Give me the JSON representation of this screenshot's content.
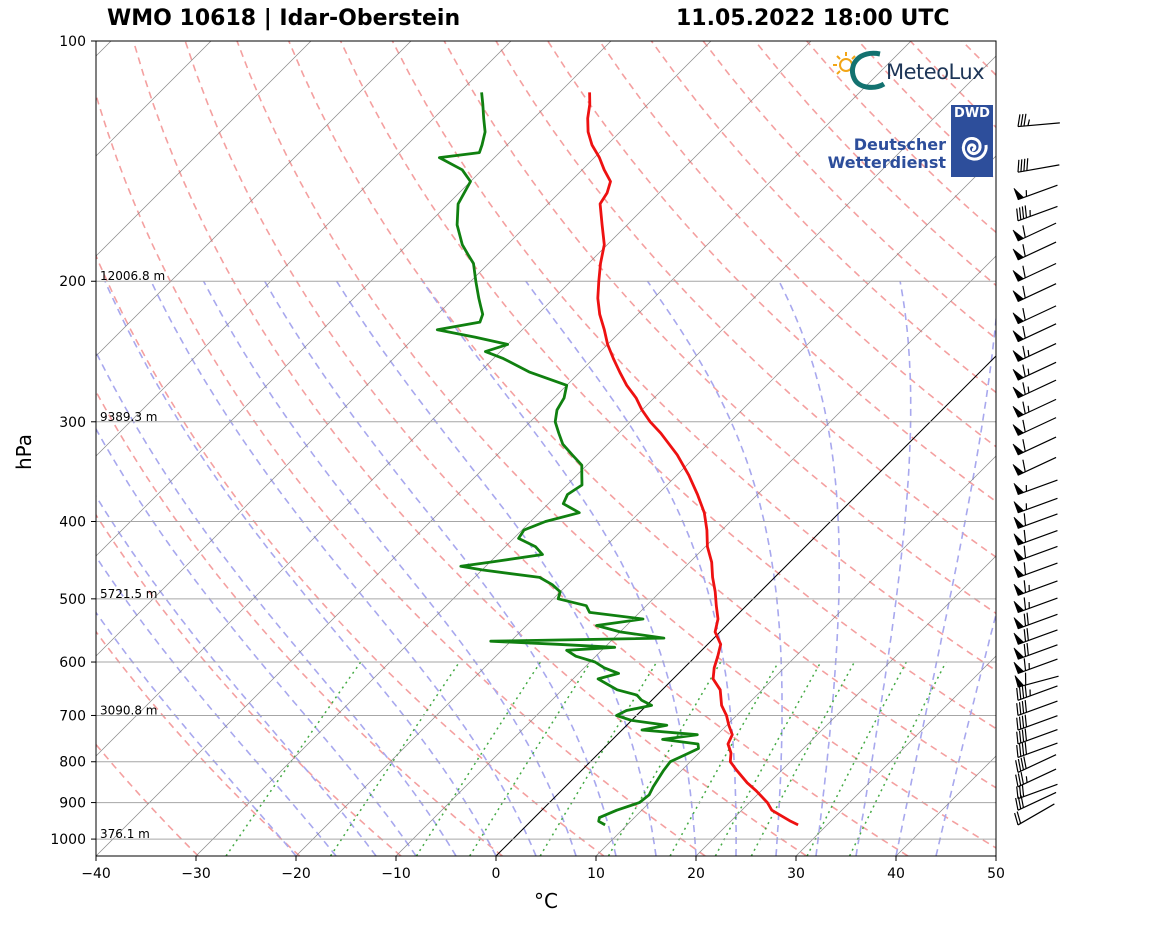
{
  "title_left": "WMO 10618 | Idar-Oberstein",
  "title_right": "11.05.2022 18:00 UTC",
  "logos": {
    "meteolux": "MeteoLux",
    "dwd_box": "DWD",
    "dwd_line1": "Deutscher",
    "dwd_line2": "Wetterdienst"
  },
  "chart_data": {
    "type": "line",
    "diagram": "Skew-T log-P",
    "xlabel": "°C",
    "ylabel": "hPa",
    "xlim": [
      -40,
      50
    ],
    "ylim": [
      1050,
      100
    ],
    "yscale": "log",
    "skew": 45,
    "xticks": [
      -40,
      -30,
      -20,
      -10,
      0,
      10,
      20,
      30,
      40,
      50
    ],
    "xtick_labels": [
      "−40",
      "−30",
      "−20",
      "−10",
      "0",
      "10",
      "20",
      "30",
      "40",
      "50"
    ],
    "yticks": [
      100,
      200,
      300,
      400,
      500,
      600,
      700,
      800,
      900,
      1000
    ],
    "grid": true,
    "height_labels": [
      {
        "p": 200,
        "text": "12006.8 m"
      },
      {
        "p": 300,
        "text": "9389.3 m"
      },
      {
        "p": 500,
        "text": "5721.5 m"
      },
      {
        "p": 700,
        "text": "3090.8 m"
      },
      {
        "p": 1000,
        "text": "376.1 m"
      }
    ],
    "colors": {
      "temperature": "#ee1111",
      "dewpoint": "#108010",
      "dry_adiabats": "#f4a0a0",
      "moist_adiabats": "#a8a8ee",
      "mixing_ratio": "#44aa44",
      "isotherms": "#888888"
    },
    "series": [
      {
        "name": "Temperature",
        "values": [
          [
            960,
            27.1
          ],
          [
            950,
            26.0
          ],
          [
            920,
            23.0
          ],
          [
            900,
            21.8
          ],
          [
            870,
            19.5
          ],
          [
            850,
            17.8
          ],
          [
            820,
            15.5
          ],
          [
            800,
            14.0
          ],
          [
            780,
            13.2
          ],
          [
            760,
            12.0
          ],
          [
            740,
            11.5
          ],
          [
            720,
            10.2
          ],
          [
            700,
            9.0
          ],
          [
            680,
            7.5
          ],
          [
            650,
            5.8
          ],
          [
            630,
            4.0
          ],
          [
            610,
            3.0
          ],
          [
            590,
            2.2
          ],
          [
            570,
            1.3
          ],
          [
            550,
            -0.5
          ],
          [
            530,
            -1.5
          ],
          [
            510,
            -3.0
          ],
          [
            490,
            -4.5
          ],
          [
            470,
            -6.2
          ],
          [
            450,
            -7.8
          ],
          [
            430,
            -9.8
          ],
          [
            410,
            -11.5
          ],
          [
            390,
            -13.5
          ],
          [
            370,
            -16.0
          ],
          [
            350,
            -18.8
          ],
          [
            330,
            -22.0
          ],
          [
            310,
            -25.8
          ],
          [
            300,
            -28.0
          ],
          [
            290,
            -30.0
          ],
          [
            280,
            -31.8
          ],
          [
            270,
            -34.0
          ],
          [
            260,
            -36.0
          ],
          [
            250,
            -38.0
          ],
          [
            240,
            -40.0
          ],
          [
            230,
            -41.8
          ],
          [
            220,
            -43.8
          ],
          [
            210,
            -45.6
          ],
          [
            200,
            -47.2
          ],
          [
            190,
            -48.8
          ],
          [
            180,
            -50.3
          ],
          [
            170,
            -52.5
          ],
          [
            160,
            -54.8
          ],
          [
            155,
            -55.2
          ],
          [
            150,
            -56.0
          ],
          [
            145,
            -57.8
          ],
          [
            140,
            -59.5
          ],
          [
            135,
            -61.5
          ],
          [
            130,
            -63.2
          ],
          [
            125,
            -64.6
          ],
          [
            120,
            -65.8
          ],
          [
            116,
            -67.0
          ]
        ]
      },
      {
        "name": "Dewpoint",
        "values": [
          [
            960,
            7.8
          ],
          [
            950,
            6.8
          ],
          [
            940,
            6.5
          ],
          [
            920,
            7.5
          ],
          [
            900,
            9.0
          ],
          [
            880,
            9.2
          ],
          [
            860,
            8.8
          ],
          [
            840,
            8.5
          ],
          [
            820,
            8.2
          ],
          [
            800,
            8.0
          ],
          [
            790,
            8.5
          ],
          [
            780,
            9.0
          ],
          [
            770,
            9.5
          ],
          [
            760,
            9.0
          ],
          [
            750,
            5.0
          ],
          [
            740,
            8.0
          ],
          [
            730,
            2.0
          ],
          [
            720,
            4.0
          ],
          [
            710,
            0.0
          ],
          [
            700,
            -2.0
          ],
          [
            690,
            -1.5
          ],
          [
            680,
            0.5
          ],
          [
            670,
            -1.0
          ],
          [
            660,
            -2.0
          ],
          [
            650,
            -4.5
          ],
          [
            640,
            -6.0
          ],
          [
            630,
            -7.5
          ],
          [
            620,
            -6.0
          ],
          [
            610,
            -8.0
          ],
          [
            600,
            -9.5
          ],
          [
            590,
            -12.0
          ],
          [
            580,
            -13.5
          ],
          [
            575,
            -9.0
          ],
          [
            570,
            -15.0
          ],
          [
            565,
            -22.0
          ],
          [
            560,
            -5.0
          ],
          [
            550,
            -10.0
          ],
          [
            540,
            -13.0
          ],
          [
            530,
            -9.0
          ],
          [
            520,
            -15.0
          ],
          [
            510,
            -16.0
          ],
          [
            500,
            -19.5
          ],
          [
            490,
            -20.0
          ],
          [
            480,
            -21.5
          ],
          [
            470,
            -23.5
          ],
          [
            460,
            -30.0
          ],
          [
            455,
            -32.5
          ],
          [
            450,
            -30.0
          ],
          [
            440,
            -25.5
          ],
          [
            430,
            -27.0
          ],
          [
            420,
            -29.5
          ],
          [
            410,
            -29.8
          ],
          [
            400,
            -28.5
          ],
          [
            390,
            -26.0
          ],
          [
            380,
            -28.5
          ],
          [
            370,
            -29.0
          ],
          [
            360,
            -28.5
          ],
          [
            350,
            -29.5
          ],
          [
            340,
            -30.5
          ],
          [
            330,
            -32.5
          ],
          [
            320,
            -34.5
          ],
          [
            310,
            -36.0
          ],
          [
            300,
            -37.5
          ],
          [
            290,
            -38.5
          ],
          [
            280,
            -39.0
          ],
          [
            270,
            -40.0
          ],
          [
            260,
            -45.0
          ],
          [
            250,
            -49.0
          ],
          [
            245,
            -51.5
          ],
          [
            240,
            -50.0
          ],
          [
            235,
            -54.0
          ],
          [
            230,
            -58.5
          ],
          [
            225,
            -55.0
          ],
          [
            220,
            -55.5
          ],
          [
            215,
            -56.5
          ],
          [
            210,
            -57.5
          ],
          [
            200,
            -59.5
          ],
          [
            190,
            -61.5
          ],
          [
            185,
            -63.0
          ],
          [
            180,
            -64.5
          ],
          [
            170,
            -67.0
          ],
          [
            160,
            -69.0
          ],
          [
            150,
            -70.0
          ],
          [
            145,
            -72.0
          ],
          [
            140,
            -75.5
          ],
          [
            138,
            -72.0
          ],
          [
            135,
            -72.5
          ],
          [
            130,
            -73.5
          ],
          [
            125,
            -75.0
          ],
          [
            120,
            -76.5
          ],
          [
            116,
            -77.8
          ]
        ]
      }
    ],
    "wind_barbs": [
      {
        "p": 960,
        "speed_kt": 20,
        "dir_deg": 240
      },
      {
        "p": 920,
        "speed_kt": 30,
        "dir_deg": 245
      },
      {
        "p": 890,
        "speed_kt": 30,
        "dir_deg": 250
      },
      {
        "p": 860,
        "speed_kt": 35,
        "dir_deg": 245
      },
      {
        "p": 825,
        "speed_kt": 40,
        "dir_deg": 245
      },
      {
        "p": 790,
        "speed_kt": 40,
        "dir_deg": 250
      },
      {
        "p": 760,
        "speed_kt": 40,
        "dir_deg": 250
      },
      {
        "p": 730,
        "speed_kt": 40,
        "dir_deg": 250
      },
      {
        "p": 700,
        "speed_kt": 40,
        "dir_deg": 250
      },
      {
        "p": 670,
        "speed_kt": 45,
        "dir_deg": 250
      },
      {
        "p": 645,
        "speed_kt": 60,
        "dir_deg": 255
      },
      {
        "p": 620,
        "speed_kt": 65,
        "dir_deg": 250
      },
      {
        "p": 595,
        "speed_kt": 70,
        "dir_deg": 250
      },
      {
        "p": 570,
        "speed_kt": 70,
        "dir_deg": 250
      },
      {
        "p": 545,
        "speed_kt": 70,
        "dir_deg": 250
      },
      {
        "p": 520,
        "speed_kt": 65,
        "dir_deg": 250
      },
      {
        "p": 495,
        "speed_kt": 65,
        "dir_deg": 250
      },
      {
        "p": 470,
        "speed_kt": 60,
        "dir_deg": 250
      },
      {
        "p": 448,
        "speed_kt": 60,
        "dir_deg": 250
      },
      {
        "p": 428,
        "speed_kt": 60,
        "dir_deg": 250
      },
      {
        "p": 408,
        "speed_kt": 60,
        "dir_deg": 250
      },
      {
        "p": 390,
        "speed_kt": 55,
        "dir_deg": 250
      },
      {
        "p": 370,
        "speed_kt": 55,
        "dir_deg": 250
      },
      {
        "p": 350,
        "speed_kt": 60,
        "dir_deg": 245
      },
      {
        "p": 330,
        "speed_kt": 60,
        "dir_deg": 245
      },
      {
        "p": 312,
        "speed_kt": 60,
        "dir_deg": 245
      },
      {
        "p": 296,
        "speed_kt": 65,
        "dir_deg": 245
      },
      {
        "p": 280,
        "speed_kt": 65,
        "dir_deg": 245
      },
      {
        "p": 266,
        "speed_kt": 65,
        "dir_deg": 245
      },
      {
        "p": 252,
        "speed_kt": 65,
        "dir_deg": 245
      },
      {
        "p": 238,
        "speed_kt": 60,
        "dir_deg": 245
      },
      {
        "p": 226,
        "speed_kt": 60,
        "dir_deg": 245
      },
      {
        "p": 212,
        "speed_kt": 60,
        "dir_deg": 245
      },
      {
        "p": 200,
        "speed_kt": 60,
        "dir_deg": 245
      },
      {
        "p": 188,
        "speed_kt": 60,
        "dir_deg": 245
      },
      {
        "p": 178,
        "speed_kt": 60,
        "dir_deg": 245
      },
      {
        "p": 168,
        "speed_kt": 45,
        "dir_deg": 250
      },
      {
        "p": 158,
        "speed_kt": 55,
        "dir_deg": 250
      },
      {
        "p": 146,
        "speed_kt": 40,
        "dir_deg": 260
      },
      {
        "p": 128,
        "speed_kt": 35,
        "dir_deg": 265
      }
    ]
  }
}
